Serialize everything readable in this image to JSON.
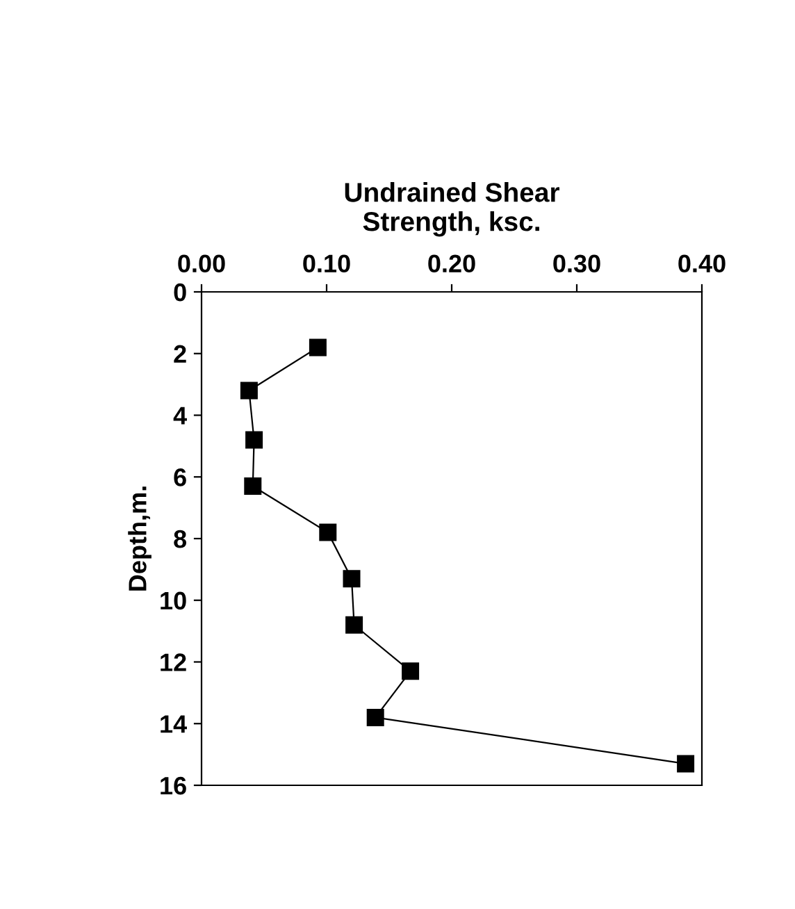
{
  "chart_data": {
    "type": "line",
    "xlabel": "Undrained Shear\nStrength, ksc.",
    "ylabel": "Depth,m.",
    "x": [
      0.093,
      0.038,
      0.042,
      0.041,
      0.101,
      0.12,
      0.122,
      0.167,
      0.139,
      0.387
    ],
    "values": [
      1.8,
      3.2,
      4.8,
      6.3,
      7.8,
      9.3,
      10.8,
      12.3,
      13.8,
      15.3
    ],
    "color": "#000000",
    "marker": "square",
    "line_style": "solid",
    "xlim": [
      0,
      0.4
    ],
    "xticks": [
      {
        "value": 0,
        "label": "0.00"
      },
      {
        "value": 0.1,
        "label": "0.10"
      },
      {
        "value": 0.2,
        "label": "0.20"
      },
      {
        "value": 0.3,
        "label": "0.30"
      },
      {
        "value": 0.4,
        "label": "0.40"
      }
    ],
    "ylim": [
      16,
      0
    ],
    "yticks": [
      0,
      2,
      4,
      6,
      8,
      10,
      12,
      14,
      16
    ],
    "grid": false
  }
}
